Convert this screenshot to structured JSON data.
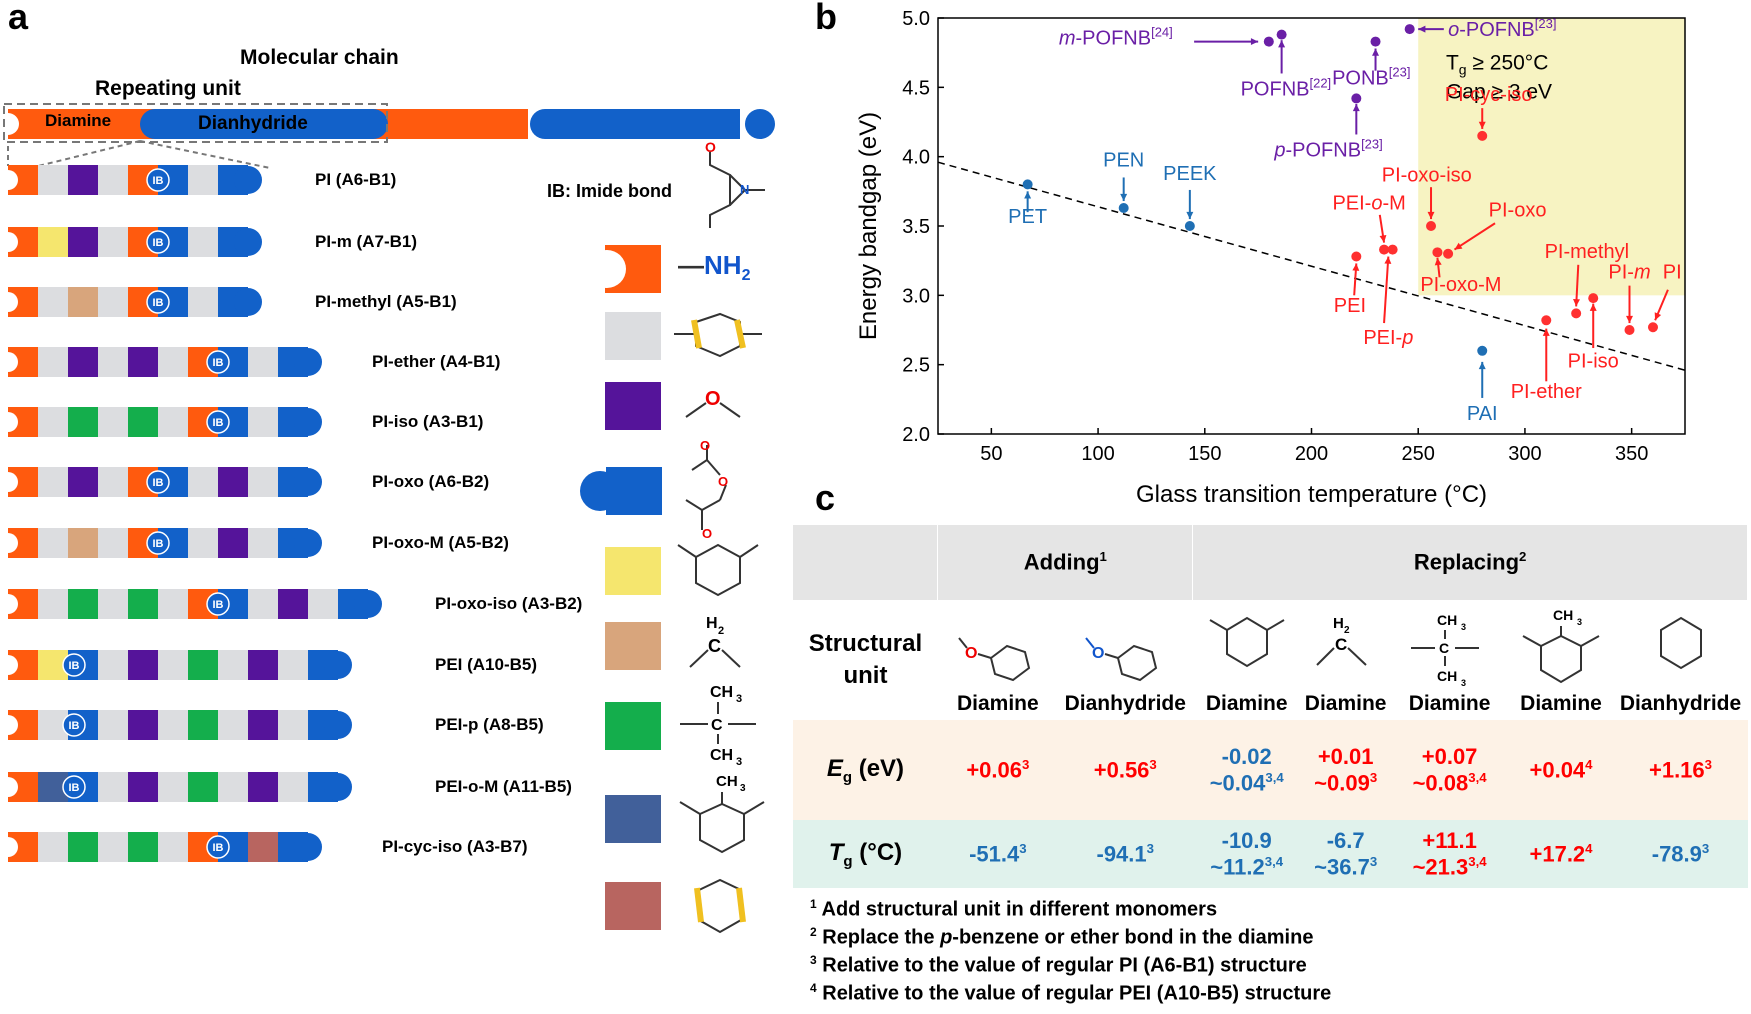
{
  "panel_a": {
    "label": "a",
    "molecular_chain_label": "Molecular chain",
    "repeating_unit_label": "Repeating unit",
    "diamine_label": "Diamine",
    "dianhydride_label": "Dianhydride",
    "ib_tag": "IB",
    "imide_bond_label": "IB: Imide bond",
    "nh2_label": "NH",
    "nh2_sub": "2",
    "polymers": [
      "PI (A6-B1)",
      "PI-m (A7-B1)",
      "PI-methyl (A5-B1)",
      "PI-ether (A4-B1)",
      "PI-iso (A3-B1)",
      "PI-oxo (A6-B2)",
      "PI-oxo-M (A5-B2)",
      "PI-oxo-iso (A3-B2)",
      "PEI (A10-B5)",
      "PEI-p (A8-B5)",
      "PEI-o-M (A11-B5)",
      "PI-cyc-iso (A3-B7)"
    ],
    "colors": {
      "diamine": "#ff5a0e",
      "dianhydride": "#1261c9",
      "benzene": "#dcdde0",
      "ether": "#55149a",
      "meta": "#f5e66e",
      "methylene": "#d8a57c",
      "isopropylidene": "#14ae4c",
      "methyl_ring": "#41609a",
      "cyclohexane": "#b86560"
    }
  },
  "panel_b": {
    "label": "b",
    "chart_data": {
      "type": "scatter",
      "xlabel": "Glass transition temperature (°C)",
      "ylabel": "Energy bandgap (eV)",
      "xlim": [
        25,
        375
      ],
      "ylim": [
        2.0,
        5.0
      ],
      "xticks": [
        "50",
        "100",
        "150",
        "200",
        "250",
        "300",
        "350"
      ],
      "yticks": [
        "2.0",
        "2.5",
        "3.0",
        "3.5",
        "4.0",
        "4.5",
        "5.0"
      ],
      "region_label_1": "T",
      "region_label_1_sub": "g",
      "region_label_1_tail": " ≥ 250°C",
      "region_label_2": "Gap ≥ 3 eV",
      "trend_line": {
        "x": [
          25,
          375
        ],
        "y": [
          3.96,
          2.46
        ]
      },
      "series": [
        {
          "color": "#1f6fb4",
          "points": [
            {
              "label": "PET",
              "x": 67,
              "y": 3.8
            },
            {
              "label": "PEN",
              "x": 112,
              "y": 3.63
            },
            {
              "label": "PEEK",
              "x": 143,
              "y": 3.5
            },
            {
              "label": "PAI",
              "x": 280,
              "y": 2.6
            }
          ]
        },
        {
          "color": "#ff3030",
          "points": [
            {
              "label": "PI-cyc-iso",
              "x": 280,
              "y": 4.15
            },
            {
              "label": "PI-oxo-iso",
              "x": 256,
              "y": 3.5
            },
            {
              "label": "PI-oxo",
              "x": 264,
              "y": 3.3
            },
            {
              "label": "PI-oxo-M",
              "x": 259,
              "y": 3.31
            },
            {
              "label": "PEI-o-M",
              "x": 234,
              "y": 3.33
            },
            {
              "label": "PEI-p",
              "x": 238,
              "y": 3.33
            },
            {
              "label": "PEI",
              "x": 221,
              "y": 3.28
            },
            {
              "label": "PI-methyl",
              "x": 324,
              "y": 2.87
            },
            {
              "label": "PI-m",
              "x": 349,
              "y": 2.75
            },
            {
              "label": "PI",
              "x": 360,
              "y": 2.77
            },
            {
              "label": "PI-iso",
              "x": 332,
              "y": 2.98
            },
            {
              "label": "PI-ether",
              "x": 310,
              "y": 2.82
            }
          ]
        },
        {
          "color": "#6a1fa6",
          "points": [
            {
              "label": "m-POFNB",
              "x": 180,
              "y": 4.83
            },
            {
              "label": "POFNB",
              "x": 186,
              "y": 4.88
            },
            {
              "label": "PONB",
              "x": 230,
              "y": 4.83
            },
            {
              "label": "o-POFNB",
              "x": 246,
              "y": 4.92
            },
            {
              "label": "p-POFNB",
              "x": 221,
              "y": 4.42
            }
          ]
        }
      ],
      "labels": {
        "pet": "PET",
        "pen": "PEN",
        "peek": "PEEK",
        "pai": "PAI",
        "m_pofnb": "m",
        "m_pofnb_tail": "-POFNB",
        "m_pofnb_ref": "[24]",
        "pofnb": "POFNB",
        "pofnb_ref": "[22]",
        "ponb": "PONB",
        "ponb_ref": "[23]",
        "o_pofnb": "o",
        "o_pofnb_tail": "-POFNB",
        "o_pofnb_ref": "[23]",
        "p_pofnb": "p",
        "p_pofnb_tail": "-POFNB",
        "p_pofnb_ref": "[23]",
        "pi_cyc_iso": "PI-cyc-iso",
        "pi_oxo_iso": "PI-oxo-iso",
        "pei_o_m_a": "PEI-",
        "pei_o_m_b": "o",
        "pei_o_m_c": "-M",
        "pi_oxo": "PI-oxo",
        "pi_oxo_m": "PI-oxo-M",
        "pei": "PEI",
        "pei_p_a": "PEI-",
        "pei_p_b": "p",
        "pi_methyl": "PI-methyl",
        "pi_m_a": "PI-",
        "pi_m_b": "m",
        "pi": "PI",
        "pi_iso": "PI-iso",
        "pi_ether": "PI-ether"
      }
    }
  },
  "panel_c": {
    "label": "c",
    "headers": {
      "adding": "Adding",
      "adding_note": "1",
      "replacing": "Replacing",
      "replacing_note": "2"
    },
    "row_labels": {
      "unit_1": "Structural",
      "unit_2": "unit",
      "eg_sym": "E",
      "eg_sub": "g",
      "eg_unit": " (eV)",
      "tg_sym": "T",
      "tg_sub": "g",
      "tg_unit": " (°C)"
    },
    "columns": [
      "Diamine",
      "Dianhydride",
      "Diamine",
      "Diamine",
      "Diamine",
      "Diamine",
      "Dianhydride"
    ],
    "eg": [
      {
        "v1": "+0.06",
        "n1": "3"
      },
      {
        "v1": "+0.56",
        "n1": "3"
      },
      {
        "v1": "-0.02",
        "v2": "~0.04",
        "n2": "3,4"
      },
      {
        "v1": "+0.01",
        "v2": "~0.09",
        "n2": "3"
      },
      {
        "v1": "+0.07",
        "v2": "~0.08",
        "n2": "3,4"
      },
      {
        "v1": "+0.04",
        "n1": "4"
      },
      {
        "v1": "+1.16",
        "n1": "3"
      }
    ],
    "tg": [
      {
        "v1": "-51.4",
        "n1": "3"
      },
      {
        "v1": "-94.1",
        "n1": "3"
      },
      {
        "v1": "-10.9",
        "v2": "~11.2",
        "n2": "3,4"
      },
      {
        "v1": "-6.7",
        "v2": "~36.7",
        "n2": "3"
      },
      {
        "v1": "+11.1",
        "v2": "~21.3",
        "n2": "3,4"
      },
      {
        "v1": "+17.2",
        "n1": "4"
      },
      {
        "v1": "-78.9",
        "n1": "3"
      }
    ],
    "footnotes": [
      {
        "n": "1",
        "text": " Add structural unit in different monomers"
      },
      {
        "n": "2",
        "a": " Replace the ",
        "b": "p",
        "c": "-benzene or ether bond in the diamine"
      },
      {
        "n": "3",
        "text": " Relative to the value of  regular PI (A6-B1) structure"
      },
      {
        "n": "4",
        "text": " Relative to the value of  regular PEI (A10-B5) structure"
      }
    ],
    "chem": {
      "h2": "H",
      "h2_sub": "2",
      "c": "C",
      "ch3": "CH",
      "ch3_sub": "3"
    }
  }
}
